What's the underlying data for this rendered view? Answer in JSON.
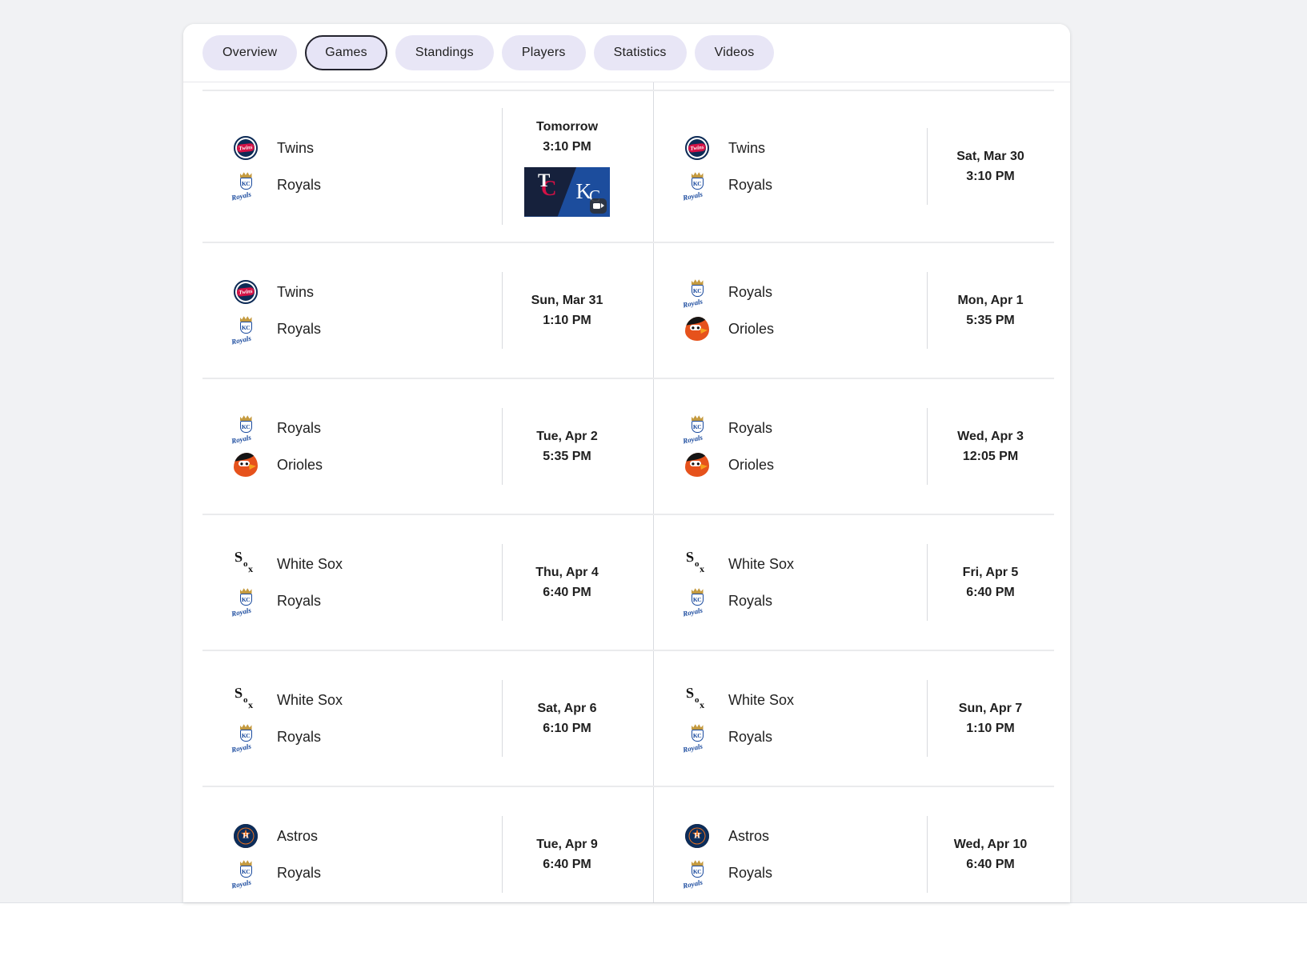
{
  "tabs": {
    "items": [
      {
        "label": "Overview",
        "selected": false
      },
      {
        "label": "Games",
        "selected": true
      },
      {
        "label": "Standings",
        "selected": false
      },
      {
        "label": "Players",
        "selected": false
      },
      {
        "label": "Statistics",
        "selected": false
      },
      {
        "label": "Videos",
        "selected": false
      }
    ]
  },
  "games": [
    {
      "teams": [
        {
          "name": "Twins",
          "logo": "twins"
        },
        {
          "name": "Royals",
          "logo": "royals"
        }
      ],
      "date": "Tomorrow",
      "time": "3:10 PM",
      "video_thumbnail": true
    },
    {
      "teams": [
        {
          "name": "Twins",
          "logo": "twins"
        },
        {
          "name": "Royals",
          "logo": "royals"
        }
      ],
      "date": "Sat, Mar 30",
      "time": "3:10 PM"
    },
    {
      "teams": [
        {
          "name": "Twins",
          "logo": "twins"
        },
        {
          "name": "Royals",
          "logo": "royals"
        }
      ],
      "date": "Sun, Mar 31",
      "time": "1:10 PM"
    },
    {
      "teams": [
        {
          "name": "Royals",
          "logo": "royals"
        },
        {
          "name": "Orioles",
          "logo": "orioles"
        }
      ],
      "date": "Mon, Apr 1",
      "time": "5:35 PM"
    },
    {
      "teams": [
        {
          "name": "Royals",
          "logo": "royals"
        },
        {
          "name": "Orioles",
          "logo": "orioles"
        }
      ],
      "date": "Tue, Apr 2",
      "time": "5:35 PM"
    },
    {
      "teams": [
        {
          "name": "Royals",
          "logo": "royals"
        },
        {
          "name": "Orioles",
          "logo": "orioles"
        }
      ],
      "date": "Wed, Apr 3",
      "time": "12:05 PM"
    },
    {
      "teams": [
        {
          "name": "White Sox",
          "logo": "whitesox"
        },
        {
          "name": "Royals",
          "logo": "royals"
        }
      ],
      "date": "Thu, Apr 4",
      "time": "6:40 PM"
    },
    {
      "teams": [
        {
          "name": "White Sox",
          "logo": "whitesox"
        },
        {
          "name": "Royals",
          "logo": "royals"
        }
      ],
      "date": "Fri, Apr 5",
      "time": "6:40 PM"
    },
    {
      "teams": [
        {
          "name": "White Sox",
          "logo": "whitesox"
        },
        {
          "name": "Royals",
          "logo": "royals"
        }
      ],
      "date": "Sat, Apr 6",
      "time": "6:10 PM"
    },
    {
      "teams": [
        {
          "name": "White Sox",
          "logo": "whitesox"
        },
        {
          "name": "Royals",
          "logo": "royals"
        }
      ],
      "date": "Sun, Apr 7",
      "time": "1:10 PM"
    },
    {
      "teams": [
        {
          "name": "Astros",
          "logo": "astros"
        },
        {
          "name": "Royals",
          "logo": "royals"
        }
      ],
      "date": "Tue, Apr 9",
      "time": "6:40 PM"
    },
    {
      "teams": [
        {
          "name": "Astros",
          "logo": "astros"
        },
        {
          "name": "Royals",
          "logo": "royals"
        }
      ],
      "date": "Wed, Apr 10",
      "time": "6:40 PM"
    }
  ],
  "thumbnail_monograms": {
    "left_t": "T",
    "left_c": "C",
    "right_k": "K",
    "right_c": "C"
  },
  "logo_text": {
    "twins_script": "Twins",
    "royals_mono": "KC",
    "royals_script": "Royals",
    "sox_s": "S",
    "sox_o": "o",
    "sox_x": "x",
    "astros_h": "H",
    "astros_star": "★"
  },
  "colors": {
    "page_bg": "#f1f2f4",
    "card_bg": "#ffffff",
    "tab_pill_bg": "#e8e6f6",
    "tab_selected_border": "#23232e",
    "text_primary": "#1f1f1f",
    "row_separator": "#eaebed",
    "column_divider": "#d9dbe0",
    "team_colors": {
      "twins_navy": "#0d2b56",
      "twins_red": "#d31145",
      "royals_blue": "#1a4a9e",
      "royals_gold": "#c49a3f",
      "orioles_orange": "#e6521c",
      "orioles_black": "#151515",
      "whitesox_black": "#111111",
      "astros_navy": "#0b2d5b",
      "astros_orange": "#e8701f",
      "thumb_left_navy": "#16213c",
      "thumb_right_blue": "#1c4d9d"
    }
  }
}
